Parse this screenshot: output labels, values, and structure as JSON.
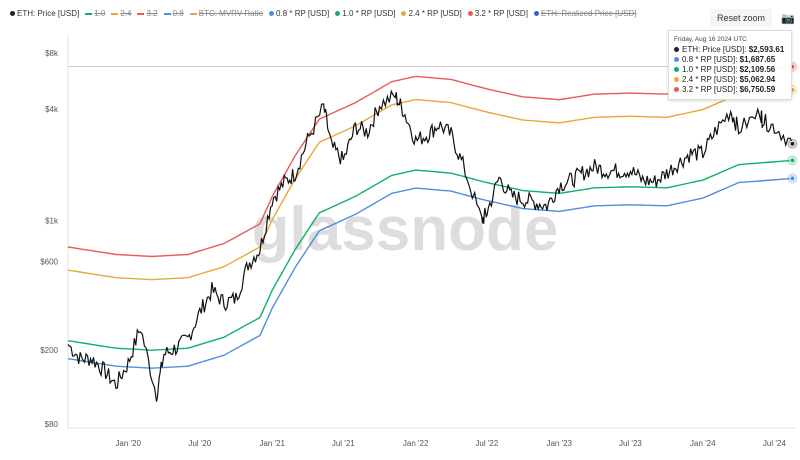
{
  "legend": [
    {
      "label": "ETH: Price [USD]",
      "color": "#222222",
      "style": "dot",
      "enabled": true
    },
    {
      "label": "1.0",
      "color": "#10b06a",
      "style": "line",
      "enabled": false
    },
    {
      "label": "2.4",
      "color": "#e8a838",
      "style": "line",
      "enabled": false
    },
    {
      "label": "3.2",
      "color": "#e85a5a",
      "style": "line",
      "enabled": false
    },
    {
      "label": "0.8",
      "color": "#4f8ee0",
      "style": "line",
      "enabled": false
    },
    {
      "label": "BTC: MVRV Ratio",
      "color": "#e8a060",
      "style": "line",
      "enabled": false
    },
    {
      "label": "0.8 * RP [USD]",
      "color": "#4f8ee0",
      "style": "dot",
      "enabled": true
    },
    {
      "label": "1.0 * RP [USD]",
      "color": "#10b06a",
      "style": "dot",
      "enabled": true
    },
    {
      "label": "2.4 * RP [USD]",
      "color": "#e8a838",
      "style": "dot",
      "enabled": true
    },
    {
      "label": "3.2 * RP [USD]",
      "color": "#e85a5a",
      "style": "dot",
      "enabled": true
    },
    {
      "label": "ETH: Realized Price [USD]",
      "color": "#3a5fc8",
      "style": "dot",
      "enabled": false
    }
  ],
  "reset_zoom": "Reset zoom",
  "camera_icon": "camera-icon",
  "watermark": "glassnode",
  "tooltip": {
    "date": "Friday, Aug 16 2024 UTC",
    "rows": [
      {
        "label": "ETH: Price [USD]: ",
        "value": "$2,593.61",
        "color": "#222222"
      },
      {
        "label": "0.8 * RP [USD]: ",
        "value": "$1,687.65",
        "color": "#4f8ee0"
      },
      {
        "label": "1.0 * RP [USD]: ",
        "value": "$2,109.56",
        "color": "#10b06a"
      },
      {
        "label": "2.4 * RP [USD]: ",
        "value": "$5,062.94",
        "color": "#e8a838"
      },
      {
        "label": "3.2 * RP [USD]: ",
        "value": "$6,750.59",
        "color": "#e85a5a"
      }
    ]
  },
  "chart_data": {
    "type": "line",
    "y_scale": "log",
    "ylim": [
      80,
      10000
    ],
    "xlim": [
      "2019-08-01",
      "2024-08-25"
    ],
    "y_ticks": [
      {
        "v": 80,
        "label": "$80"
      },
      {
        "v": 200,
        "label": "$200"
      },
      {
        "v": 600,
        "label": "$600"
      },
      {
        "v": 1000,
        "label": "$1k"
      },
      {
        "v": 4000,
        "label": "$4k"
      },
      {
        "v": 8000,
        "label": "$8k"
      }
    ],
    "x_ticks": [
      {
        "d": "2020-01-01",
        "label": "Jan '20"
      },
      {
        "d": "2020-07-01",
        "label": "Jul '20"
      },
      {
        "d": "2021-01-01",
        "label": "Jan '21"
      },
      {
        "d": "2021-07-01",
        "label": "Jul '21"
      },
      {
        "d": "2022-01-01",
        "label": "Jan '22"
      },
      {
        "d": "2022-07-01",
        "label": "Jul '22"
      },
      {
        "d": "2023-01-01",
        "label": "Jan '23"
      },
      {
        "d": "2023-07-01",
        "label": "Jul '23"
      },
      {
        "d": "2024-01-01",
        "label": "Jan '24"
      },
      {
        "d": "2024-07-01",
        "label": "Jul '24"
      }
    ],
    "price": {
      "name": "ETH: Price [USD]",
      "color": "#111111",
      "points": [
        [
          "2019-08-01",
          215
        ],
        [
          "2019-09-01",
          180
        ],
        [
          "2019-10-01",
          180
        ],
        [
          "2019-11-01",
          155
        ],
        [
          "2019-12-01",
          130
        ],
        [
          "2020-01-01",
          170
        ],
        [
          "2020-02-01",
          265
        ],
        [
          "2020-03-13",
          115
        ],
        [
          "2020-04-01",
          190
        ],
        [
          "2020-05-01",
          205
        ],
        [
          "2020-06-01",
          230
        ],
        [
          "2020-07-01",
          320
        ],
        [
          "2020-08-01",
          420
        ],
        [
          "2020-09-01",
          360
        ],
        [
          "2020-10-01",
          380
        ],
        [
          "2020-11-01",
          580
        ],
        [
          "2020-12-01",
          700
        ],
        [
          "2021-01-01",
          1300
        ],
        [
          "2021-02-01",
          1600
        ],
        [
          "2021-03-01",
          1800
        ],
        [
          "2021-04-01",
          2700
        ],
        [
          "2021-05-12",
          4100
        ],
        [
          "2021-06-01",
          2500
        ],
        [
          "2021-07-01",
          2100
        ],
        [
          "2021-08-01",
          3200
        ],
        [
          "2021-09-01",
          3000
        ],
        [
          "2021-10-01",
          4200
        ],
        [
          "2021-11-10",
          4700
        ],
        [
          "2021-12-01",
          3900
        ],
        [
          "2022-01-01",
          2700
        ],
        [
          "2022-02-01",
          2900
        ],
        [
          "2022-03-01",
          3300
        ],
        [
          "2022-04-01",
          2900
        ],
        [
          "2022-05-01",
          2000
        ],
        [
          "2022-06-18",
          1000
        ],
        [
          "2022-07-01",
          1100
        ],
        [
          "2022-08-01",
          1700
        ],
        [
          "2022-09-01",
          1350
        ],
        [
          "2022-10-01",
          1300
        ],
        [
          "2022-11-01",
          1250
        ],
        [
          "2022-12-01",
          1200
        ],
        [
          "2023-01-01",
          1550
        ],
        [
          "2023-02-01",
          1650
        ],
        [
          "2023-03-01",
          1800
        ],
        [
          "2023-04-01",
          1950
        ],
        [
          "2023-05-01",
          1850
        ],
        [
          "2023-06-01",
          1850
        ],
        [
          "2023-07-01",
          1870
        ],
        [
          "2023-08-01",
          1650
        ],
        [
          "2023-09-01",
          1620
        ],
        [
          "2023-10-01",
          1800
        ],
        [
          "2023-11-01",
          2050
        ],
        [
          "2023-12-01",
          2300
        ],
        [
          "2024-01-01",
          2300
        ],
        [
          "2024-02-01",
          3000
        ],
        [
          "2024-03-12",
          3900
        ],
        [
          "2024-04-01",
          3100
        ],
        [
          "2024-05-27",
          3800
        ],
        [
          "2024-06-01",
          3450
        ],
        [
          "2024-07-01",
          3200
        ],
        [
          "2024-08-16",
          2593.61
        ]
      ]
    },
    "realized_price": [
      [
        "2019-08-01",
        225
      ],
      [
        "2019-12-01",
        205
      ],
      [
        "2020-03-01",
        200
      ],
      [
        "2020-06-01",
        205
      ],
      [
        "2020-09-01",
        235
      ],
      [
        "2020-12-01",
        300
      ],
      [
        "2021-01-01",
        420
      ],
      [
        "2021-03-01",
        700
      ],
      [
        "2021-05-01",
        1100
      ],
      [
        "2021-08-01",
        1350
      ],
      [
        "2021-11-01",
        1750
      ],
      [
        "2022-01-01",
        1870
      ],
      [
        "2022-04-01",
        1800
      ],
      [
        "2022-07-01",
        1600
      ],
      [
        "2022-10-01",
        1450
      ],
      [
        "2023-01-01",
        1400
      ],
      [
        "2023-04-01",
        1500
      ],
      [
        "2023-07-01",
        1520
      ],
      [
        "2023-10-01",
        1500
      ],
      [
        "2024-01-01",
        1650
      ],
      [
        "2024-04-01",
        2000
      ],
      [
        "2024-08-16",
        2109.56
      ]
    ],
    "bands": [
      {
        "name": "0.8 * RP [USD]",
        "multiplier": 0.8,
        "color": "#4f8ee0"
      },
      {
        "name": "1.0 * RP [USD]",
        "multiplier": 1.0,
        "color": "#10b06a"
      },
      {
        "name": "2.4 * RP [USD]",
        "multiplier": 2.4,
        "color": "#e8a838"
      },
      {
        "name": "3.2 * RP [USD]",
        "multiplier": 3.2,
        "color": "#e85a5a"
      }
    ],
    "grid": false,
    "legend_position": "top"
  }
}
